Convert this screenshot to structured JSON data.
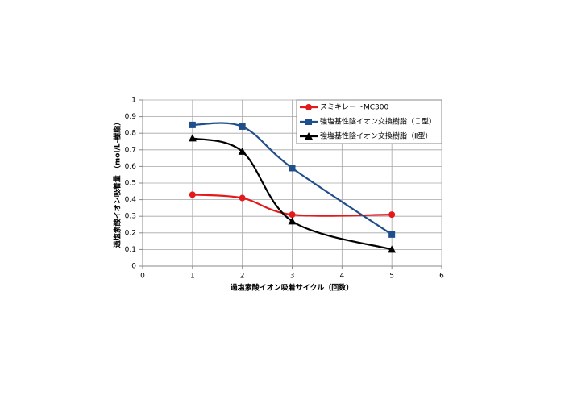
{
  "chart_data": {
    "type": "line",
    "x_label": "過塩素酸イオン吸着サイクル（回数）",
    "y_label": "過塩素酸イオン吸着量 （mol/L-樹脂）",
    "x": [
      1,
      2,
      3,
      5
    ],
    "series": [
      {
        "name": "スミキレートMC300",
        "color": "#e31a1c",
        "marker": "circle",
        "values": [
          0.43,
          0.41,
          0.31,
          0.31
        ]
      },
      {
        "name": "強塩基性陰イオン交換樹脂（Ｉ型）",
        "color": "#1f4e8c",
        "marker": "square",
        "values": [
          0.85,
          0.84,
          0.59,
          0.19
        ]
      },
      {
        "name": "強塩基性陰イオン交換樹脂（Ⅱ型）",
        "color": "#000000",
        "marker": "triangle",
        "values": [
          0.77,
          0.69,
          0.27,
          0.1
        ]
      }
    ],
    "xlim": [
      0,
      6
    ],
    "xticks": [
      0,
      1,
      2,
      3,
      4,
      5,
      6
    ],
    "ylim": [
      0,
      1
    ],
    "yticks": [
      0,
      0.1,
      0.2,
      0.3,
      0.4,
      0.5,
      0.6,
      0.7,
      0.8,
      0.9,
      1
    ],
    "grid": true,
    "legend": "upper right"
  }
}
